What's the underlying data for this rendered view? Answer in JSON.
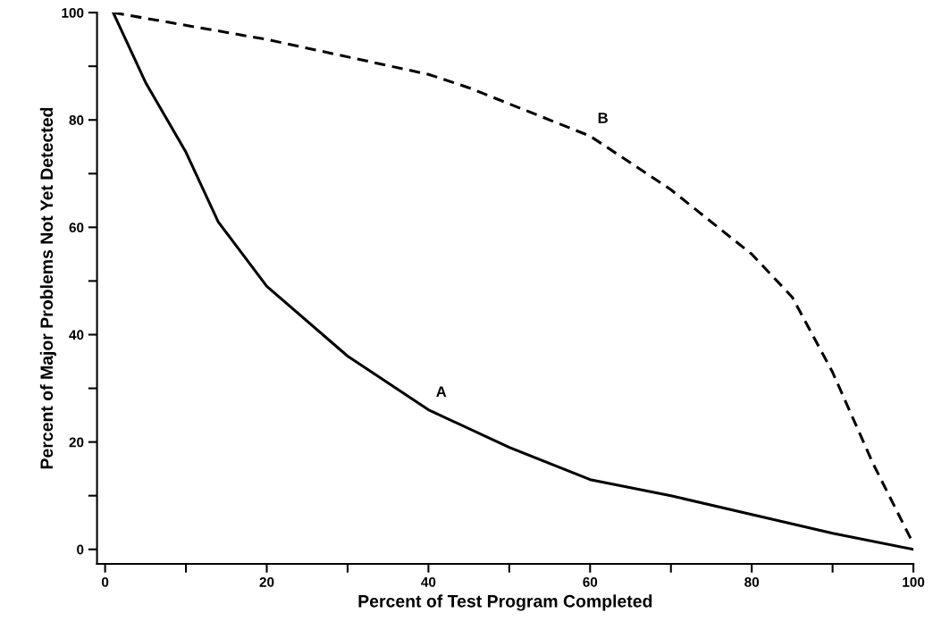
{
  "chart_data": {
    "type": "line",
    "xlabel": "Percent of Test Program Completed",
    "ylabel": "Percent of Major Problems Not Yet Detected",
    "series": [
      {
        "name": "A",
        "x": [
          1,
          5,
          10,
          14,
          20,
          30,
          40,
          50,
          60,
          70,
          80,
          90,
          100
        ],
        "values": [
          100,
          87,
          74,
          61,
          49,
          36,
          26,
          19,
          13,
          10,
          6.5,
          3,
          0
        ],
        "color": "#000000",
        "line_style": "solid"
      },
      {
        "name": "B",
        "x": [
          1,
          20,
          40,
          45,
          50,
          60,
          70,
          80,
          85,
          90,
          95,
          100
        ],
        "values": [
          100,
          95,
          88.5,
          86,
          83,
          77,
          67,
          55,
          47,
          33,
          16,
          1
        ],
        "color": "#000000",
        "line_style": "dashed"
      }
    ],
    "xlim": [
      -1,
      100
    ],
    "ylim": [
      -2.7,
      100
    ],
    "xticks": [
      0,
      {
        "value": 10,
        "label": null
      },
      20,
      {
        "value": 30,
        "label": null
      },
      40,
      {
        "value": 50,
        "label": null
      },
      60,
      {
        "value": 70,
        "label": null
      },
      80,
      {
        "value": 90,
        "label": null
      },
      100
    ],
    "yticks": [
      0,
      {
        "value": 10,
        "label": null
      },
      20,
      {
        "value": 30,
        "label": null
      },
      40,
      {
        "value": 50,
        "label": null
      },
      60,
      {
        "value": 70,
        "label": null
      },
      80,
      {
        "value": 90,
        "label": null
      },
      100
    ],
    "grid": false,
    "legend": false,
    "marker": "none"
  }
}
